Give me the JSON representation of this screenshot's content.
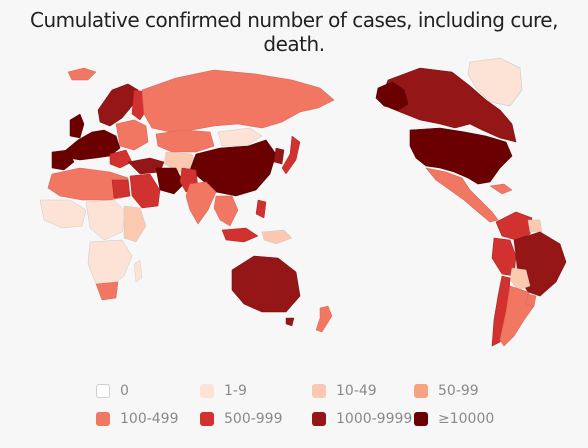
{
  "title": "Cumulative confirmed number of cases, including cure, death.",
  "legend": [
    {
      "label": "0",
      "color": "#ffffff"
    },
    {
      "label": "1-9",
      "color": "#fde3d6"
    },
    {
      "label": "10-49",
      "color": "#fbc9b0"
    },
    {
      "label": "50-99",
      "color": "#f6a383"
    },
    {
      "label": "100-499",
      "color": "#f27763"
    },
    {
      "label": "500-999",
      "color": "#d1312f"
    },
    {
      "label": "1000-9999",
      "color": "#951616"
    },
    {
      "label": "≥10000",
      "color": "#6a0000"
    }
  ]
}
